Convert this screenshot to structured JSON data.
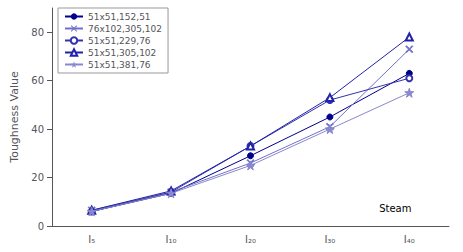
{
  "chart_data": {
    "type": "line",
    "categories": [
      "I₅",
      "I₁₀",
      "I₂₀",
      "I₃₀",
      "I₄₀"
    ],
    "series": [
      {
        "name": "51x51,152,51",
        "color": "#00008B",
        "marker": "circle",
        "values": [
          6,
          13.5,
          29,
          45,
          63
        ]
      },
      {
        "name": "76x102,305,102",
        "color": "#7070CC",
        "marker": "x",
        "values": [
          6.5,
          14,
          26,
          41,
          73
        ]
      },
      {
        "name": "51x51,229,76",
        "color": "#3333AA",
        "marker": "open_circle",
        "values": [
          6,
          14,
          33,
          52,
          61
        ]
      },
      {
        "name": "51x51,305,102",
        "color": "#2222AA",
        "marker": "open_triangle",
        "values": [
          6.5,
          14.5,
          33,
          53,
          78
        ]
      },
      {
        "name": "51x51,381,76",
        "color": "#8888CC",
        "marker": "star",
        "values": [
          6,
          13.5,
          25,
          40,
          55
        ]
      }
    ],
    "ylabel": "Toughness Value",
    "ylim": [
      0,
      90
    ],
    "yticks": [
      0,
      20,
      40,
      60,
      80
    ],
    "annotations": [
      {
        "text": "Steam",
        "x": 3.62,
        "y": 5
      }
    ],
    "legend": "upper left",
    "grid": false
  }
}
